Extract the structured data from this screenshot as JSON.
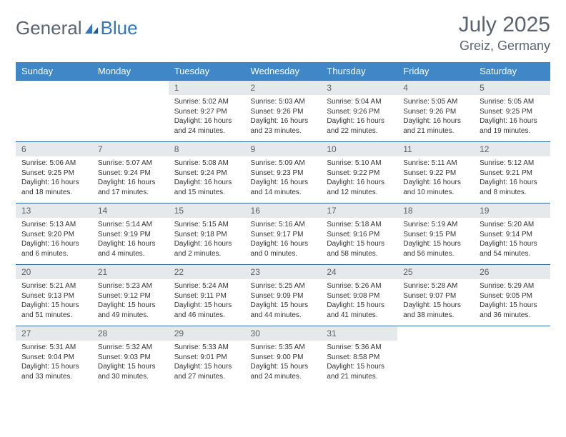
{
  "brand": {
    "part1": "General",
    "part2": "Blue"
  },
  "title": "July 2025",
  "location": "Greiz, Germany",
  "colors": {
    "header_bg": "#3f87c7",
    "header_text": "#ffffff",
    "daynum_bg": "#e6e9ec",
    "daynum_text": "#5a6066",
    "row_border": "#2f6ca8",
    "body_text": "#333333",
    "title_text": "#5a6570",
    "logo_accent": "#2f78bf"
  },
  "weekdays": [
    "Sunday",
    "Monday",
    "Tuesday",
    "Wednesday",
    "Thursday",
    "Friday",
    "Saturday"
  ],
  "weeks": [
    [
      null,
      null,
      {
        "n": "1",
        "sr": "Sunrise: 5:02 AM",
        "ss": "Sunset: 9:27 PM",
        "d1": "Daylight: 16 hours",
        "d2": "and 24 minutes."
      },
      {
        "n": "2",
        "sr": "Sunrise: 5:03 AM",
        "ss": "Sunset: 9:26 PM",
        "d1": "Daylight: 16 hours",
        "d2": "and 23 minutes."
      },
      {
        "n": "3",
        "sr": "Sunrise: 5:04 AM",
        "ss": "Sunset: 9:26 PM",
        "d1": "Daylight: 16 hours",
        "d2": "and 22 minutes."
      },
      {
        "n": "4",
        "sr": "Sunrise: 5:05 AM",
        "ss": "Sunset: 9:26 PM",
        "d1": "Daylight: 16 hours",
        "d2": "and 21 minutes."
      },
      {
        "n": "5",
        "sr": "Sunrise: 5:05 AM",
        "ss": "Sunset: 9:25 PM",
        "d1": "Daylight: 16 hours",
        "d2": "and 19 minutes."
      }
    ],
    [
      {
        "n": "6",
        "sr": "Sunrise: 5:06 AM",
        "ss": "Sunset: 9:25 PM",
        "d1": "Daylight: 16 hours",
        "d2": "and 18 minutes."
      },
      {
        "n": "7",
        "sr": "Sunrise: 5:07 AM",
        "ss": "Sunset: 9:24 PM",
        "d1": "Daylight: 16 hours",
        "d2": "and 17 minutes."
      },
      {
        "n": "8",
        "sr": "Sunrise: 5:08 AM",
        "ss": "Sunset: 9:24 PM",
        "d1": "Daylight: 16 hours",
        "d2": "and 15 minutes."
      },
      {
        "n": "9",
        "sr": "Sunrise: 5:09 AM",
        "ss": "Sunset: 9:23 PM",
        "d1": "Daylight: 16 hours",
        "d2": "and 14 minutes."
      },
      {
        "n": "10",
        "sr": "Sunrise: 5:10 AM",
        "ss": "Sunset: 9:22 PM",
        "d1": "Daylight: 16 hours",
        "d2": "and 12 minutes."
      },
      {
        "n": "11",
        "sr": "Sunrise: 5:11 AM",
        "ss": "Sunset: 9:22 PM",
        "d1": "Daylight: 16 hours",
        "d2": "and 10 minutes."
      },
      {
        "n": "12",
        "sr": "Sunrise: 5:12 AM",
        "ss": "Sunset: 9:21 PM",
        "d1": "Daylight: 16 hours",
        "d2": "and 8 minutes."
      }
    ],
    [
      {
        "n": "13",
        "sr": "Sunrise: 5:13 AM",
        "ss": "Sunset: 9:20 PM",
        "d1": "Daylight: 16 hours",
        "d2": "and 6 minutes."
      },
      {
        "n": "14",
        "sr": "Sunrise: 5:14 AM",
        "ss": "Sunset: 9:19 PM",
        "d1": "Daylight: 16 hours",
        "d2": "and 4 minutes."
      },
      {
        "n": "15",
        "sr": "Sunrise: 5:15 AM",
        "ss": "Sunset: 9:18 PM",
        "d1": "Daylight: 16 hours",
        "d2": "and 2 minutes."
      },
      {
        "n": "16",
        "sr": "Sunrise: 5:16 AM",
        "ss": "Sunset: 9:17 PM",
        "d1": "Daylight: 16 hours",
        "d2": "and 0 minutes."
      },
      {
        "n": "17",
        "sr": "Sunrise: 5:18 AM",
        "ss": "Sunset: 9:16 PM",
        "d1": "Daylight: 15 hours",
        "d2": "and 58 minutes."
      },
      {
        "n": "18",
        "sr": "Sunrise: 5:19 AM",
        "ss": "Sunset: 9:15 PM",
        "d1": "Daylight: 15 hours",
        "d2": "and 56 minutes."
      },
      {
        "n": "19",
        "sr": "Sunrise: 5:20 AM",
        "ss": "Sunset: 9:14 PM",
        "d1": "Daylight: 15 hours",
        "d2": "and 54 minutes."
      }
    ],
    [
      {
        "n": "20",
        "sr": "Sunrise: 5:21 AM",
        "ss": "Sunset: 9:13 PM",
        "d1": "Daylight: 15 hours",
        "d2": "and 51 minutes."
      },
      {
        "n": "21",
        "sr": "Sunrise: 5:23 AM",
        "ss": "Sunset: 9:12 PM",
        "d1": "Daylight: 15 hours",
        "d2": "and 49 minutes."
      },
      {
        "n": "22",
        "sr": "Sunrise: 5:24 AM",
        "ss": "Sunset: 9:11 PM",
        "d1": "Daylight: 15 hours",
        "d2": "and 46 minutes."
      },
      {
        "n": "23",
        "sr": "Sunrise: 5:25 AM",
        "ss": "Sunset: 9:09 PM",
        "d1": "Daylight: 15 hours",
        "d2": "and 44 minutes."
      },
      {
        "n": "24",
        "sr": "Sunrise: 5:26 AM",
        "ss": "Sunset: 9:08 PM",
        "d1": "Daylight: 15 hours",
        "d2": "and 41 minutes."
      },
      {
        "n": "25",
        "sr": "Sunrise: 5:28 AM",
        "ss": "Sunset: 9:07 PM",
        "d1": "Daylight: 15 hours",
        "d2": "and 38 minutes."
      },
      {
        "n": "26",
        "sr": "Sunrise: 5:29 AM",
        "ss": "Sunset: 9:05 PM",
        "d1": "Daylight: 15 hours",
        "d2": "and 36 minutes."
      }
    ],
    [
      {
        "n": "27",
        "sr": "Sunrise: 5:31 AM",
        "ss": "Sunset: 9:04 PM",
        "d1": "Daylight: 15 hours",
        "d2": "and 33 minutes."
      },
      {
        "n": "28",
        "sr": "Sunrise: 5:32 AM",
        "ss": "Sunset: 9:03 PM",
        "d1": "Daylight: 15 hours",
        "d2": "and 30 minutes."
      },
      {
        "n": "29",
        "sr": "Sunrise: 5:33 AM",
        "ss": "Sunset: 9:01 PM",
        "d1": "Daylight: 15 hours",
        "d2": "and 27 minutes."
      },
      {
        "n": "30",
        "sr": "Sunrise: 5:35 AM",
        "ss": "Sunset: 9:00 PM",
        "d1": "Daylight: 15 hours",
        "d2": "and 24 minutes."
      },
      {
        "n": "31",
        "sr": "Sunrise: 5:36 AM",
        "ss": "Sunset: 8:58 PM",
        "d1": "Daylight: 15 hours",
        "d2": "and 21 minutes."
      },
      null,
      null
    ]
  ]
}
